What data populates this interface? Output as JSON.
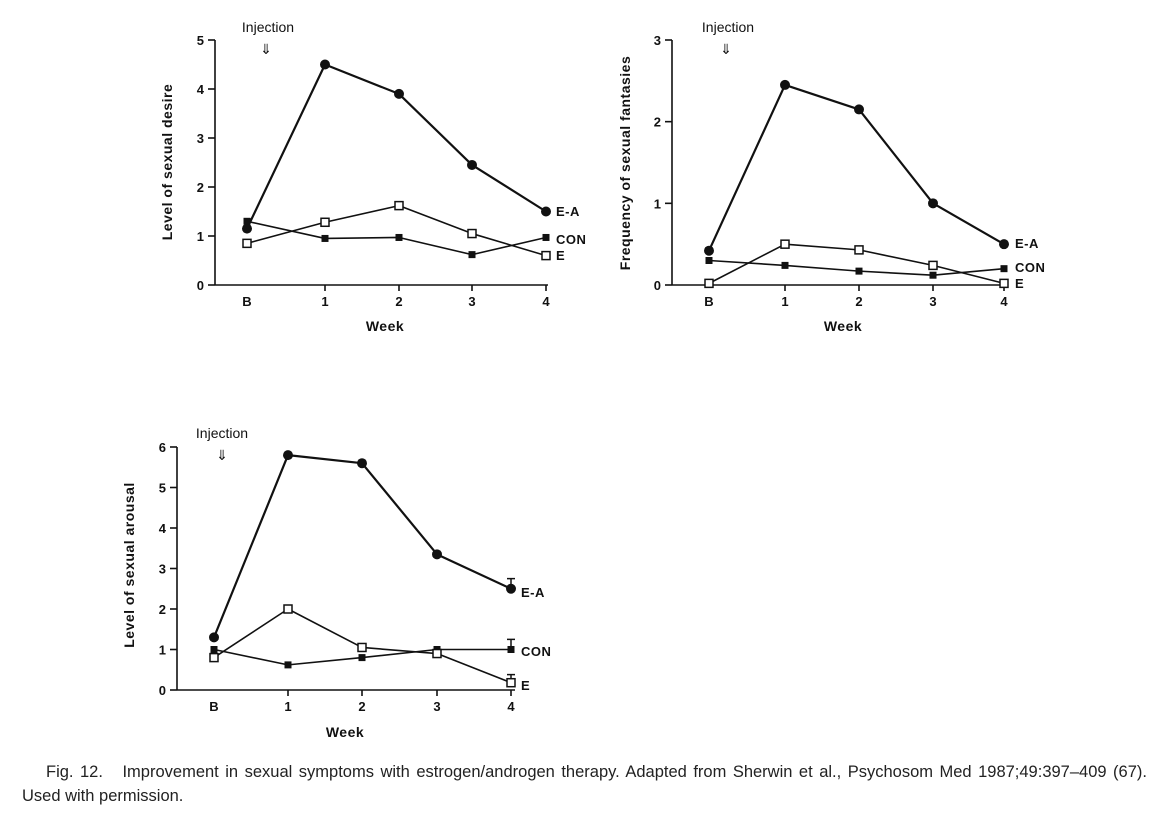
{
  "chart_data": [
    {
      "type": "line",
      "ylabel": "Level of sexual desire",
      "xlabel": "Week",
      "annotation": "Injection",
      "annotation_symbol": "⇓",
      "categories": [
        "B",
        "1",
        "2",
        "3",
        "4"
      ],
      "ylim": [
        0,
        5
      ],
      "yticks": [
        "0",
        "1",
        "2",
        "3",
        "4",
        "5"
      ],
      "series": [
        {
          "name": "E-A",
          "marker": "filled-circle",
          "values": [
            1.15,
            4.5,
            3.9,
            2.45,
            1.5
          ]
        },
        {
          "name": "CON",
          "marker": "filled-square",
          "values": [
            1.3,
            0.95,
            0.97,
            0.62,
            0.97
          ]
        },
        {
          "name": "E",
          "marker": "open-square",
          "values": [
            0.85,
            1.28,
            1.62,
            1.05,
            0.6
          ]
        }
      ]
    },
    {
      "type": "line",
      "ylabel": "Frequency of sexual fantasies",
      "xlabel": "Week",
      "annotation": "Injection",
      "annotation_symbol": "⇓",
      "categories": [
        "B",
        "1",
        "2",
        "3",
        "4"
      ],
      "ylim": [
        0,
        3
      ],
      "yticks": [
        "0",
        "1",
        "2",
        "3"
      ],
      "series": [
        {
          "name": "E-A",
          "marker": "filled-circle",
          "values": [
            0.42,
            2.45,
            2.15,
            1.0,
            0.5
          ]
        },
        {
          "name": "CON",
          "marker": "filled-square",
          "values": [
            0.3,
            0.24,
            0.17,
            0.12,
            0.2
          ]
        },
        {
          "name": "E",
          "marker": "open-square",
          "values": [
            0.02,
            0.5,
            0.43,
            0.24,
            0.02
          ]
        }
      ]
    },
    {
      "type": "line",
      "ylabel": "Level of sexual arousal",
      "xlabel": "Week",
      "annotation": "Injection",
      "annotation_symbol": "⇓",
      "categories": [
        "B",
        "1",
        "2",
        "3",
        "4"
      ],
      "ylim": [
        0,
        6
      ],
      "yticks": [
        "0",
        "1",
        "2",
        "3",
        "4",
        "5",
        "6"
      ],
      "series": [
        {
          "name": "E-A",
          "marker": "filled-circle",
          "values": [
            1.3,
            5.8,
            5.6,
            3.35,
            2.5
          ],
          "error_last": 0.25
        },
        {
          "name": "CON",
          "marker": "filled-square",
          "values": [
            1.0,
            0.62,
            0.8,
            1.0,
            1.0
          ],
          "error_last": 0.25
        },
        {
          "name": "E",
          "marker": "open-square",
          "values": [
            0.8,
            2.0,
            1.05,
            0.9,
            0.18
          ],
          "error_last": 0.2
        }
      ]
    }
  ],
  "caption": {
    "figure_label": "Fig. 12.",
    "text": "Improvement in sexual symptoms with estrogen/androgen therapy. Adapted from Sherwin et al., Psychosom Med 1987;49:397–409 (67). Used with permission."
  }
}
